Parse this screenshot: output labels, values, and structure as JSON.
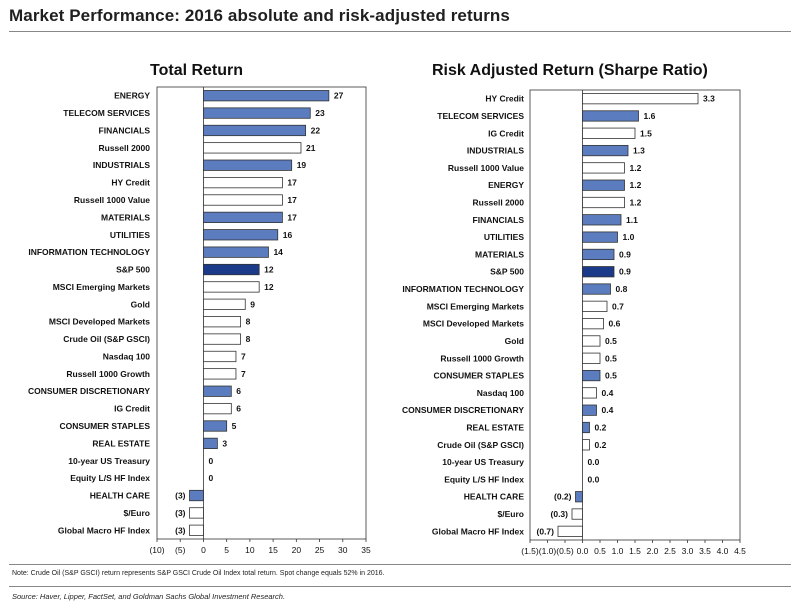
{
  "title": "Market Performance: 2016 absolute and risk-adjusted returns",
  "note": "Note: Crude Oil (S&P GSCI) return represents S&P GSCI Crude Oil Index total return. Spot change equals 52% in 2016.",
  "source": "Source: Haver, Lipper, FactSet, and Goldman Sachs Global Investment Research.",
  "colors": {
    "sector": "#5b7dbf",
    "sp500": "#1c3a8a",
    "other": "#ffffff",
    "outline": "#333333"
  },
  "chart_data": [
    {
      "type": "bar",
      "orientation": "horizontal",
      "title": "Total Return",
      "xlim": [
        -10,
        35
      ],
      "xticks": [
        -10,
        -5,
        0,
        5,
        10,
        15,
        20,
        25,
        30,
        35
      ],
      "xtick_labels": [
        "(10)",
        "(5)",
        "0",
        "5",
        "10",
        "15",
        "20",
        "25",
        "30",
        "35"
      ],
      "categories": [
        "ENERGY",
        "TELECOM SERVICES",
        "FINANCIALS",
        "Russell 2000",
        "INDUSTRIALS",
        "HY Credit",
        "Russell 1000 Value",
        "MATERIALS",
        "UTILITIES",
        "INFORMATION TECHNOLOGY",
        "S&P 500",
        "MSCI Emerging Markets",
        "Gold",
        "MSCI Developed Markets",
        "Crude Oil (S&P GSCI)",
        "Nasdaq 100",
        "Russell 1000 Growth",
        "CONSUMER DISCRETIONARY",
        "IG Credit",
        "CONSUMER STAPLES",
        "REAL ESTATE",
        "10-year US Treasury",
        "Equity L/S HF Index",
        "HEALTH CARE",
        "$/Euro",
        "Global Macro HF Index"
      ],
      "values": [
        27,
        23,
        22,
        21,
        19,
        17,
        17,
        17,
        16,
        14,
        12,
        12,
        9,
        8,
        8,
        7,
        7,
        6,
        6,
        5,
        3,
        0,
        0,
        -3,
        -3,
        -3
      ],
      "value_labels": [
        "27",
        "23",
        "22",
        "21",
        "19",
        "17",
        "17",
        "17",
        "16",
        "14",
        "12",
        "12",
        "9",
        "8",
        "8",
        "7",
        "7",
        "6",
        "6",
        "5",
        "3",
        "0",
        "0",
        "(3)",
        "(3)",
        "(3)"
      ],
      "kinds": [
        "sector",
        "sector",
        "sector",
        "other",
        "sector",
        "other",
        "other",
        "sector",
        "sector",
        "sector",
        "sp500",
        "other",
        "other",
        "other",
        "other",
        "other",
        "other",
        "sector",
        "other",
        "sector",
        "sector",
        "other",
        "other",
        "sector",
        "other",
        "other"
      ]
    },
    {
      "type": "bar",
      "orientation": "horizontal",
      "title": "Risk Adjusted Return (Sharpe Ratio)",
      "xlim": [
        -1.5,
        4.5
      ],
      "xticks": [
        -1.5,
        -1.0,
        -0.5,
        0.0,
        0.5,
        1.0,
        1.5,
        2.0,
        2.5,
        3.0,
        3.5,
        4.0,
        4.5
      ],
      "xtick_labels": [
        "(1.5)",
        "(1.0)",
        "(0.5)",
        "0.0",
        "0.5",
        "1.0",
        "1.5",
        "2.0",
        "2.5",
        "3.0",
        "3.5",
        "4.0",
        "4.5"
      ],
      "categories": [
        "HY Credit",
        "TELECOM SERVICES",
        "IG Credit",
        "INDUSTRIALS",
        "Russell 1000 Value",
        "ENERGY",
        "Russell 2000",
        "FINANCIALS",
        "UTILITIES",
        "MATERIALS",
        "S&P 500",
        "INFORMATION TECHNOLOGY",
        "MSCI Emerging Markets",
        "MSCI Developed Markets",
        "Gold",
        "Russell 1000 Growth",
        "CONSUMER STAPLES",
        "Nasdaq 100",
        "CONSUMER DISCRETIONARY",
        "REAL ESTATE",
        "Crude Oil (S&P GSCI)",
        "10-year US Treasury",
        "Equity L/S HF Index",
        "HEALTH CARE",
        "$/Euro",
        "Global Macro HF Index"
      ],
      "values": [
        3.3,
        1.6,
        1.5,
        1.3,
        1.2,
        1.2,
        1.2,
        1.1,
        1.0,
        0.9,
        0.9,
        0.8,
        0.7,
        0.6,
        0.5,
        0.5,
        0.5,
        0.4,
        0.4,
        0.2,
        0.2,
        0.0,
        0.0,
        -0.2,
        -0.3,
        -0.7
      ],
      "value_labels": [
        "3.3",
        "1.6",
        "1.5",
        "1.3",
        "1.2",
        "1.2",
        "1.2",
        "1.1",
        "1.0",
        "0.9",
        "0.9",
        "0.8",
        "0.7",
        "0.6",
        "0.5",
        "0.5",
        "0.5",
        "0.4",
        "0.4",
        "0.2",
        "0.2",
        "0.0",
        "0.0",
        "(0.2)",
        "(0.3)",
        "(0.7)"
      ],
      "kinds": [
        "other",
        "sector",
        "other",
        "sector",
        "other",
        "sector",
        "other",
        "sector",
        "sector",
        "sector",
        "sp500",
        "sector",
        "other",
        "other",
        "other",
        "other",
        "sector",
        "other",
        "sector",
        "sector",
        "other",
        "other",
        "other",
        "sector",
        "other",
        "other"
      ]
    }
  ]
}
